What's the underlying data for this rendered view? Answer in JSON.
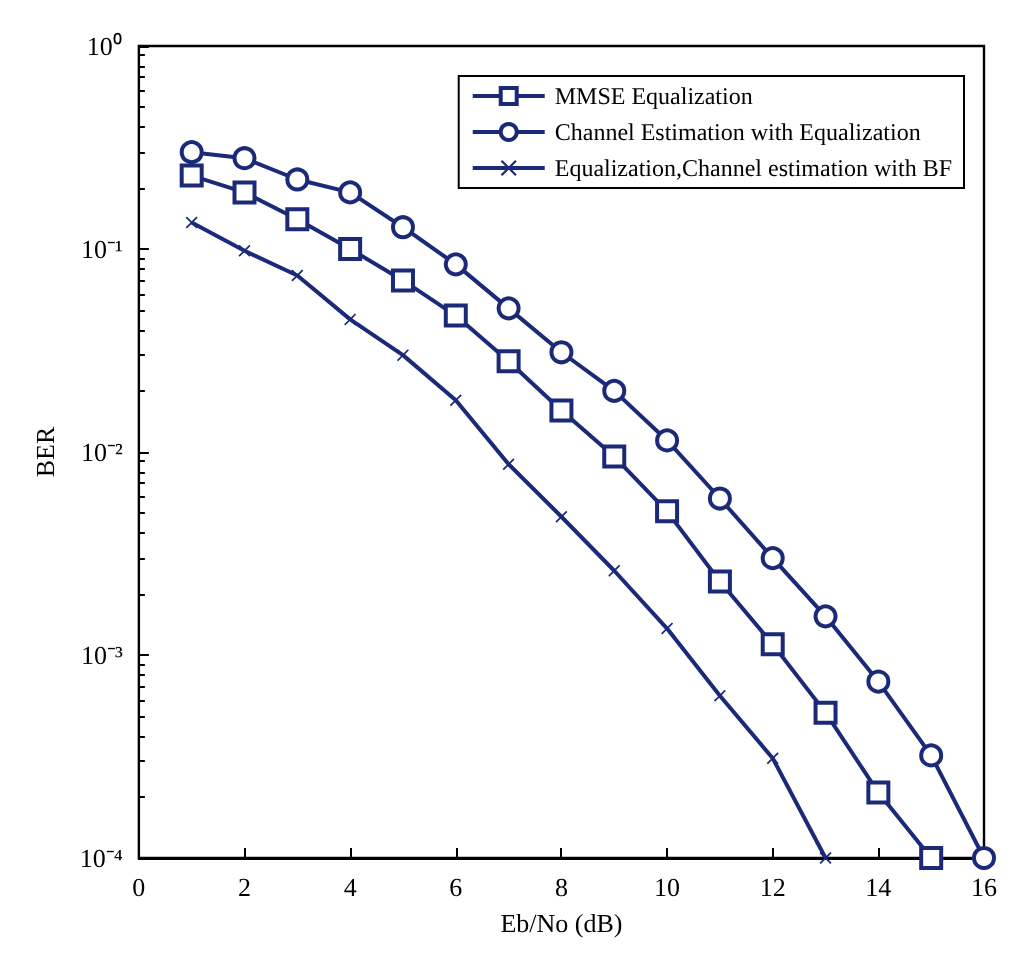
{
  "chart_data": {
    "type": "line",
    "xlabel": "Eb/No (dB)",
    "ylabel": "BER",
    "log": "y",
    "grid": false,
    "legend": "top right",
    "line_style": "solid",
    "xlim": [
      0,
      16
    ],
    "xticks": [
      0,
      2,
      4,
      6,
      8,
      10,
      12,
      14,
      16
    ],
    "ylim": [
      0.0001,
      1
    ],
    "yticks": [
      {
        "value": 0.0001,
        "label": "10⁻⁴"
      },
      {
        "value": 0.001,
        "label": "10⁻³"
      },
      {
        "value": 0.01,
        "label": "10⁻²"
      },
      {
        "value": 0.1,
        "label": "10⁻¹"
      },
      {
        "value": 1,
        "label": "10⁰"
      }
    ],
    "series": [
      {
        "name": "MMSE Equalization",
        "color": "#1a2a78",
        "marker": "square",
        "x": [
          1,
          2,
          3,
          4,
          5,
          6,
          7,
          8,
          9,
          10,
          11,
          12,
          13,
          14,
          15
        ],
        "values": [
          0.23,
          0.19,
          0.14,
          0.1,
          0.07,
          0.047,
          0.028,
          0.016,
          0.0095,
          0.0051,
          0.0023,
          0.00113,
          0.00052,
          0.00021,
          0.0001
        ]
      },
      {
        "name": "Channel Estimation with Equalization",
        "color": "#1a2a78",
        "marker": "circle",
        "x": [
          1,
          2,
          3,
          4,
          5,
          6,
          7,
          8,
          9,
          10,
          11,
          12,
          13,
          14,
          15,
          16
        ],
        "values": [
          0.3,
          0.28,
          0.22,
          0.19,
          0.128,
          0.084,
          0.051,
          0.031,
          0.02,
          0.0114,
          0.0059,
          0.003,
          0.00155,
          0.00074,
          0.00032,
          0.0001
        ]
      },
      {
        "name": "Equalization,Channel estimation with BF",
        "color": "#1a2a78",
        "marker": "cross",
        "x": [
          1,
          2,
          3,
          4,
          5,
          6,
          7,
          8,
          9,
          10,
          11,
          12,
          13
        ],
        "values": [
          0.135,
          0.098,
          0.074,
          0.045,
          0.03,
          0.018,
          0.0087,
          0.0048,
          0.0026,
          0.00135,
          0.00063,
          0.00031,
          0.0001
        ]
      }
    ]
  }
}
